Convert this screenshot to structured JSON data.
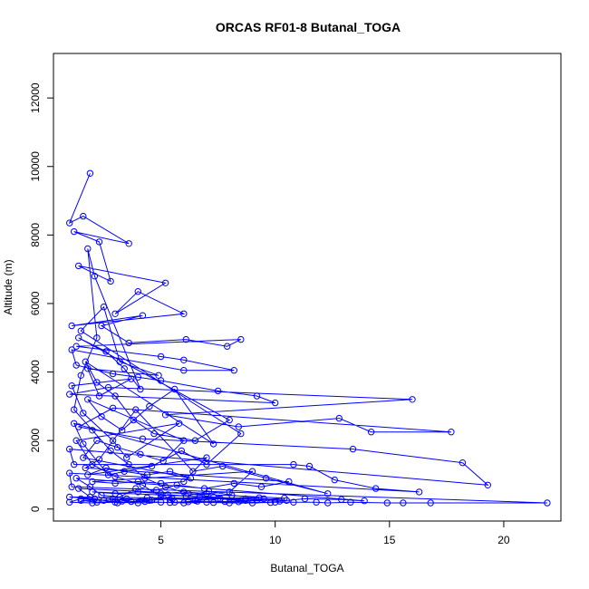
{
  "chart_data": {
    "type": "line",
    "title": "ORCAS RF01-8 Butanal_TOGA",
    "xlabel": "Butanal_TOGA",
    "ylabel": "Altitude (m)",
    "xlim": [
      0.3,
      22.5
    ],
    "ylim": [
      -350,
      13300
    ],
    "xticks": [
      5,
      10,
      15,
      20
    ],
    "yticks": [
      0,
      2000,
      4000,
      6000,
      8000,
      10000,
      12000
    ],
    "grid": false,
    "markers": "open-circle",
    "color": "#0000ff",
    "series": [
      {
        "points": [
          [
            1.9,
            9800
          ],
          [
            1.0,
            8350
          ],
          [
            1.6,
            8550
          ],
          [
            3.6,
            7750
          ],
          [
            1.2,
            8100
          ],
          [
            2.3,
            7800
          ],
          [
            2.8,
            6650
          ],
          [
            1.4,
            7100
          ],
          [
            5.2,
            6600
          ],
          [
            3.0,
            5700
          ],
          [
            4.0,
            6350
          ],
          [
            6.0,
            5700
          ],
          [
            1.1,
            5350
          ],
          [
            4.2,
            5650
          ],
          [
            2.4,
            5350
          ],
          [
            3.6,
            4850
          ],
          [
            6.1,
            4950
          ],
          [
            7.9,
            4750
          ],
          [
            8.5,
            4950
          ],
          [
            1.3,
            4750
          ],
          [
            5.0,
            4450
          ],
          [
            6.0,
            4350
          ],
          [
            8.2,
            4050
          ],
          [
            6.0,
            4050
          ],
          [
            1.1,
            4650
          ],
          [
            1.3,
            4200
          ],
          [
            2.9,
            3950
          ],
          [
            4.0,
            3850
          ],
          [
            5.0,
            3750
          ],
          [
            7.5,
            3450
          ],
          [
            9.2,
            3300
          ],
          [
            10.0,
            3100
          ],
          [
            1.0,
            3350
          ],
          [
            2.7,
            3550
          ],
          [
            16.0,
            3200
          ],
          [
            5.2,
            2750
          ],
          [
            8.4,
            2400
          ],
          [
            12.8,
            2650
          ],
          [
            14.2,
            2250
          ],
          [
            17.7,
            2250
          ],
          [
            2.9,
            2950
          ],
          [
            1.4,
            2400
          ],
          [
            4.2,
            2050
          ],
          [
            13.4,
            1750
          ],
          [
            18.2,
            1350
          ],
          [
            19.3,
            700
          ],
          [
            1.0,
            1750
          ],
          [
            1.2,
            1300
          ],
          [
            10.8,
            1300
          ],
          [
            11.5,
            1250
          ],
          [
            12.6,
            850
          ],
          [
            14.4,
            600
          ],
          [
            16.3,
            500
          ],
          [
            1.0,
            1050
          ],
          [
            1.1,
            650
          ],
          [
            21.9,
            180
          ],
          [
            16.8,
            180
          ],
          [
            15.6,
            180
          ],
          [
            14.9,
            180
          ],
          [
            13.3,
            200
          ],
          [
            12.3,
            180
          ],
          [
            11.8,
            200
          ],
          [
            10.8,
            200
          ],
          [
            10.0,
            200
          ],
          [
            9.0,
            180
          ],
          [
            8.0,
            180
          ],
          [
            7.0,
            200
          ],
          [
            6.0,
            180
          ],
          [
            5.0,
            200
          ],
          [
            4.0,
            180
          ],
          [
            3.0,
            200
          ],
          [
            2.0,
            180
          ],
          [
            1.0,
            200
          ],
          [
            1.5,
            300
          ],
          [
            2.5,
            250
          ],
          [
            3.5,
            300
          ],
          [
            4.5,
            250
          ],
          [
            5.5,
            300
          ],
          [
            6.5,
            250
          ],
          [
            7.5,
            300
          ],
          [
            8.5,
            250
          ],
          [
            9.5,
            300
          ],
          [
            10.5,
            250
          ],
          [
            2.0,
            500
          ],
          [
            3.0,
            450
          ],
          [
            4.0,
            500
          ],
          [
            5.0,
            450
          ],
          [
            6.0,
            500
          ],
          [
            7.0,
            450
          ],
          [
            8.0,
            500
          ],
          [
            9.0,
            1100
          ],
          [
            2.0,
            800
          ],
          [
            3.0,
            750
          ],
          [
            4.0,
            800
          ],
          [
            5.0,
            750
          ],
          [
            6.0,
            800
          ],
          [
            7.0,
            1500
          ],
          [
            1.8,
            1000
          ],
          [
            2.6,
            1200
          ],
          [
            3.4,
            1100
          ],
          [
            4.4,
            1000
          ],
          [
            5.4,
            1100
          ],
          [
            6.3,
            900
          ],
          [
            1.6,
            1500
          ],
          [
            2.2,
            2000
          ],
          [
            3.1,
            1800
          ],
          [
            4.1,
            1600
          ],
          [
            5.1,
            1400
          ],
          [
            6.0,
            2000
          ],
          [
            1.8,
            3200
          ],
          [
            2.4,
            2700
          ],
          [
            3.3,
            2300
          ],
          [
            4.5,
            3000
          ],
          [
            5.6,
            3500
          ],
          [
            7.3,
            1900
          ],
          [
            1.7,
            4300
          ],
          [
            2.2,
            3700
          ],
          [
            3.0,
            3300
          ],
          [
            3.8,
            2600
          ],
          [
            4.7,
            2200
          ],
          [
            6.5,
            2000
          ],
          [
            8.0,
            2600
          ],
          [
            1.4,
            5000
          ],
          [
            2.6,
            4600
          ],
          [
            3.4,
            4100
          ],
          [
            4.1,
            3500
          ],
          [
            2.1,
            6800
          ],
          [
            1.8,
            7600
          ],
          [
            2.2,
            5000
          ],
          [
            1.5,
            3900
          ],
          [
            1.2,
            2900
          ],
          [
            2.0,
            2300
          ],
          [
            2.8,
            1700
          ],
          [
            3.6,
            1300
          ],
          [
            4.3,
            900
          ],
          [
            5.2,
            650
          ],
          [
            6.2,
            450
          ],
          [
            7.3,
            350
          ],
          [
            8.7,
            250
          ],
          [
            10.2,
            230
          ],
          [
            11.3,
            300
          ],
          [
            12.9,
            280
          ],
          [
            13.9,
            240
          ],
          [
            1.3,
            900
          ],
          [
            1.9,
            650
          ],
          [
            2.4,
            400
          ],
          [
            3.2,
            350
          ],
          [
            3.9,
            600
          ],
          [
            4.8,
            550
          ],
          [
            5.7,
            700
          ],
          [
            6.9,
            600
          ],
          [
            8.2,
            750
          ],
          [
            9.4,
            650
          ],
          [
            10.6,
            800
          ],
          [
            1.7,
            1200
          ],
          [
            2.3,
            1450
          ],
          [
            3.9,
            2900
          ],
          [
            6.4,
            1100
          ],
          [
            7.7,
            1250
          ],
          [
            9.6,
            900
          ],
          [
            12.3,
            450
          ],
          [
            1.2,
            2500
          ],
          [
            1.6,
            1900
          ],
          [
            2.7,
            1000
          ],
          [
            4.6,
            1250
          ],
          [
            5.9,
            1700
          ],
          [
            7.0,
            1300
          ],
          [
            8.5,
            2200
          ],
          [
            1.5,
            5200
          ],
          [
            2.5,
            5900
          ],
          [
            3.2,
            4300
          ],
          [
            4.9,
            3900
          ],
          [
            1.8,
            4100
          ],
          [
            2.3,
            3300
          ],
          [
            3.7,
            3800
          ],
          [
            1.1,
            3600
          ],
          [
            1.6,
            2800
          ],
          [
            2.9,
            2000
          ],
          [
            3.5,
            1500
          ],
          [
            5.8,
            2500
          ],
          [
            1.3,
            2000
          ],
          [
            2.0,
            1300
          ],
          [
            3.0,
            950
          ],
          [
            4.2,
            700
          ],
          [
            5.0,
            350
          ],
          [
            5.6,
            200
          ],
          [
            6.6,
            230
          ],
          [
            7.8,
            220
          ],
          [
            9.2,
            260
          ],
          [
            10.4,
            320
          ],
          [
            1.4,
            600
          ],
          [
            1.9,
            350
          ],
          [
            2.9,
            300
          ],
          [
            3.7,
            220
          ],
          [
            4.6,
            260
          ],
          [
            5.3,
            420
          ],
          [
            6.1,
            380
          ],
          [
            7.1,
            520
          ],
          [
            8.1,
            400
          ],
          [
            9.3,
            330
          ],
          [
            1.5,
            250
          ],
          [
            2.2,
            200
          ],
          [
            3.3,
            230
          ],
          [
            4.4,
            330
          ],
          [
            5.4,
            280
          ],
          [
            6.7,
            350
          ],
          [
            7.6,
            300
          ],
          [
            8.7,
            300
          ],
          [
            1.0,
            350
          ],
          [
            2.1,
            300
          ],
          [
            3.1,
            180
          ],
          [
            4.3,
            220
          ],
          [
            5.4,
            190
          ],
          [
            6.2,
            210
          ],
          [
            7.3,
            190
          ],
          [
            8.4,
            210
          ],
          [
            9.8,
            190
          ]
        ]
      }
    ]
  }
}
